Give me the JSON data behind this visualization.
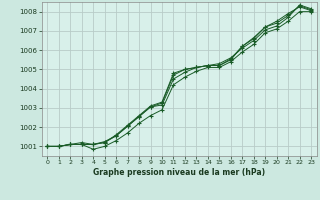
{
  "title": "Graphe pression niveau de la mer (hPa)",
  "bg_color": "#cce8e0",
  "plot_bg_color": "#d8f0ea",
  "grid_color": "#b8ccc8",
  "line_color": "#1a5c28",
  "xlim": [
    -0.5,
    23.5
  ],
  "ylim": [
    1000.5,
    1008.5
  ],
  "xticks": [
    0,
    1,
    2,
    3,
    4,
    5,
    6,
    7,
    8,
    9,
    10,
    11,
    12,
    13,
    14,
    15,
    16,
    17,
    18,
    19,
    20,
    21,
    22,
    23
  ],
  "yticks": [
    1001,
    1002,
    1003,
    1004,
    1005,
    1006,
    1007,
    1008
  ],
  "series": [
    [
      1001.0,
      1001.0,
      1001.1,
      1001.1,
      1001.1,
      1001.2,
      1001.6,
      1002.1,
      1002.6,
      1003.1,
      1003.3,
      1004.8,
      1005.0,
      1005.1,
      1005.2,
      1005.2,
      1005.5,
      1006.2,
      1006.6,
      1007.2,
      1007.4,
      1007.8,
      1008.3,
      1008.1
    ],
    [
      1001.0,
      1001.0,
      1001.1,
      1001.1,
      1000.85,
      1001.0,
      1001.3,
      1001.7,
      1002.2,
      1002.6,
      1002.9,
      1004.2,
      1004.6,
      1004.9,
      1005.1,
      1005.1,
      1005.4,
      1005.9,
      1006.3,
      1006.9,
      1007.1,
      1007.5,
      1008.0,
      1008.0
    ],
    [
      1001.0,
      1001.0,
      1001.1,
      1001.2,
      1001.1,
      1001.25,
      1001.55,
      1002.05,
      1002.55,
      1003.05,
      1003.15,
      1004.5,
      1004.85,
      1005.1,
      1005.2,
      1005.3,
      1005.6,
      1006.1,
      1006.5,
      1007.05,
      1007.25,
      1007.7,
      1008.35,
      1008.15
    ],
    [
      1001.0,
      1001.0,
      1001.1,
      1001.1,
      1001.1,
      1001.2,
      1001.55,
      1002.05,
      1002.55,
      1003.05,
      1003.25,
      1004.7,
      1005.0,
      1005.1,
      1005.2,
      1005.2,
      1005.55,
      1006.2,
      1006.65,
      1007.2,
      1007.5,
      1007.9,
      1008.25,
      1008.05
    ]
  ]
}
